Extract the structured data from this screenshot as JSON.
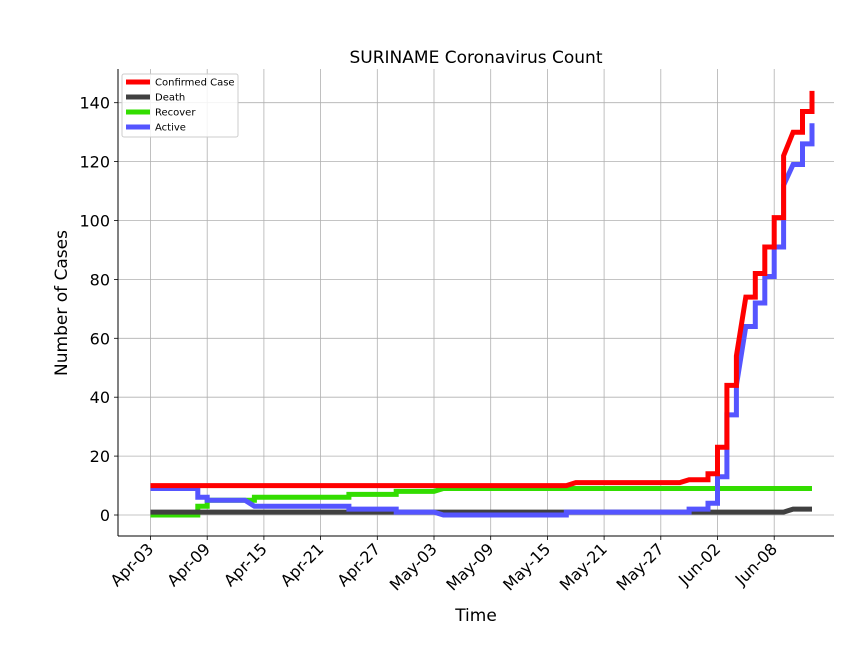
{
  "chart_data": {
    "type": "line",
    "title": "SURINAME Coronavirus Count",
    "xlabel": "Time",
    "ylabel": "Number of Cases",
    "x_start": "Apr-03",
    "x_tick_labels": [
      "Apr-03",
      "Apr-09",
      "Apr-15",
      "Apr-21",
      "Apr-27",
      "May-03",
      "May-09",
      "May-15",
      "May-21",
      "May-27",
      "Jun-02",
      "Jun-08"
    ],
    "y_ticks": [
      0,
      20,
      40,
      60,
      80,
      100,
      120,
      140
    ],
    "ylim": [
      -7,
      152
    ],
    "grid": true,
    "legend_position": "top-left",
    "series": [
      {
        "name": "Confirmed Case",
        "color": "#ff0000",
        "points": [
          [
            "Apr-03",
            10
          ],
          [
            "May-17",
            10
          ],
          [
            "May-18",
            11
          ],
          [
            "May-29",
            11
          ],
          [
            "May-30",
            12
          ],
          [
            "Jun-01",
            12
          ],
          [
            "Jun-01",
            14
          ],
          [
            "Jun-02",
            14
          ],
          [
            "Jun-02",
            23
          ],
          [
            "Jun-03",
            23
          ],
          [
            "Jun-03",
            44
          ],
          [
            "Jun-04",
            44
          ],
          [
            "Jun-04",
            54
          ],
          [
            "Jun-05",
            74
          ],
          [
            "Jun-06",
            74
          ],
          [
            "Jun-06",
            82
          ],
          [
            "Jun-07",
            82
          ],
          [
            "Jun-07",
            91
          ],
          [
            "Jun-08",
            91
          ],
          [
            "Jun-08",
            101
          ],
          [
            "Jun-09",
            101
          ],
          [
            "Jun-09",
            122
          ],
          [
            "Jun-10",
            130
          ],
          [
            "Jun-11",
            130
          ],
          [
            "Jun-11",
            137
          ],
          [
            "Jun-12",
            137
          ],
          [
            "Jun-12",
            144
          ]
        ]
      },
      {
        "name": "Death",
        "color": "#404040",
        "points": [
          [
            "Apr-03",
            1
          ],
          [
            "Jun-09",
            1
          ],
          [
            "Jun-10",
            2
          ],
          [
            "Jun-12",
            2
          ]
        ]
      },
      {
        "name": "Recover",
        "color": "#33dd00",
        "points": [
          [
            "Apr-03",
            0
          ],
          [
            "Apr-08",
            0
          ],
          [
            "Apr-08",
            3
          ],
          [
            "Apr-09",
            3
          ],
          [
            "Apr-09",
            5
          ],
          [
            "Apr-14",
            5
          ],
          [
            "Apr-14",
            6
          ],
          [
            "Apr-24",
            6
          ],
          [
            "Apr-24",
            7
          ],
          [
            "Apr-29",
            7
          ],
          [
            "Apr-29",
            8
          ],
          [
            "May-03",
            8
          ],
          [
            "May-04",
            9
          ],
          [
            "Jun-12",
            9
          ]
        ]
      },
      {
        "name": "Active",
        "color": "#5555ff",
        "points": [
          [
            "Apr-03",
            9
          ],
          [
            "Apr-08",
            9
          ],
          [
            "Apr-08",
            6
          ],
          [
            "Apr-09",
            6
          ],
          [
            "Apr-09",
            5
          ],
          [
            "Apr-13",
            5
          ],
          [
            "Apr-14",
            3
          ],
          [
            "Apr-24",
            3
          ],
          [
            "Apr-24",
            2
          ],
          [
            "Apr-29",
            2
          ],
          [
            "Apr-29",
            1
          ],
          [
            "May-03",
            1
          ],
          [
            "May-04",
            0
          ],
          [
            "May-17",
            0
          ],
          [
            "May-17",
            1
          ],
          [
            "May-30",
            1
          ],
          [
            "May-30",
            2
          ],
          [
            "Jun-01",
            2
          ],
          [
            "Jun-01",
            4
          ],
          [
            "Jun-02",
            4
          ],
          [
            "Jun-02",
            13
          ],
          [
            "Jun-03",
            13
          ],
          [
            "Jun-03",
            34
          ],
          [
            "Jun-04",
            34
          ],
          [
            "Jun-04",
            44
          ],
          [
            "Jun-05",
            64
          ],
          [
            "Jun-06",
            64
          ],
          [
            "Jun-06",
            72
          ],
          [
            "Jun-07",
            72
          ],
          [
            "Jun-07",
            81
          ],
          [
            "Jun-08",
            81
          ],
          [
            "Jun-08",
            91
          ],
          [
            "Jun-09",
            91
          ],
          [
            "Jun-09",
            112
          ],
          [
            "Jun-10",
            119
          ],
          [
            "Jun-11",
            119
          ],
          [
            "Jun-11",
            126
          ],
          [
            "Jun-12",
            126
          ],
          [
            "Jun-12",
            133
          ]
        ]
      }
    ]
  }
}
